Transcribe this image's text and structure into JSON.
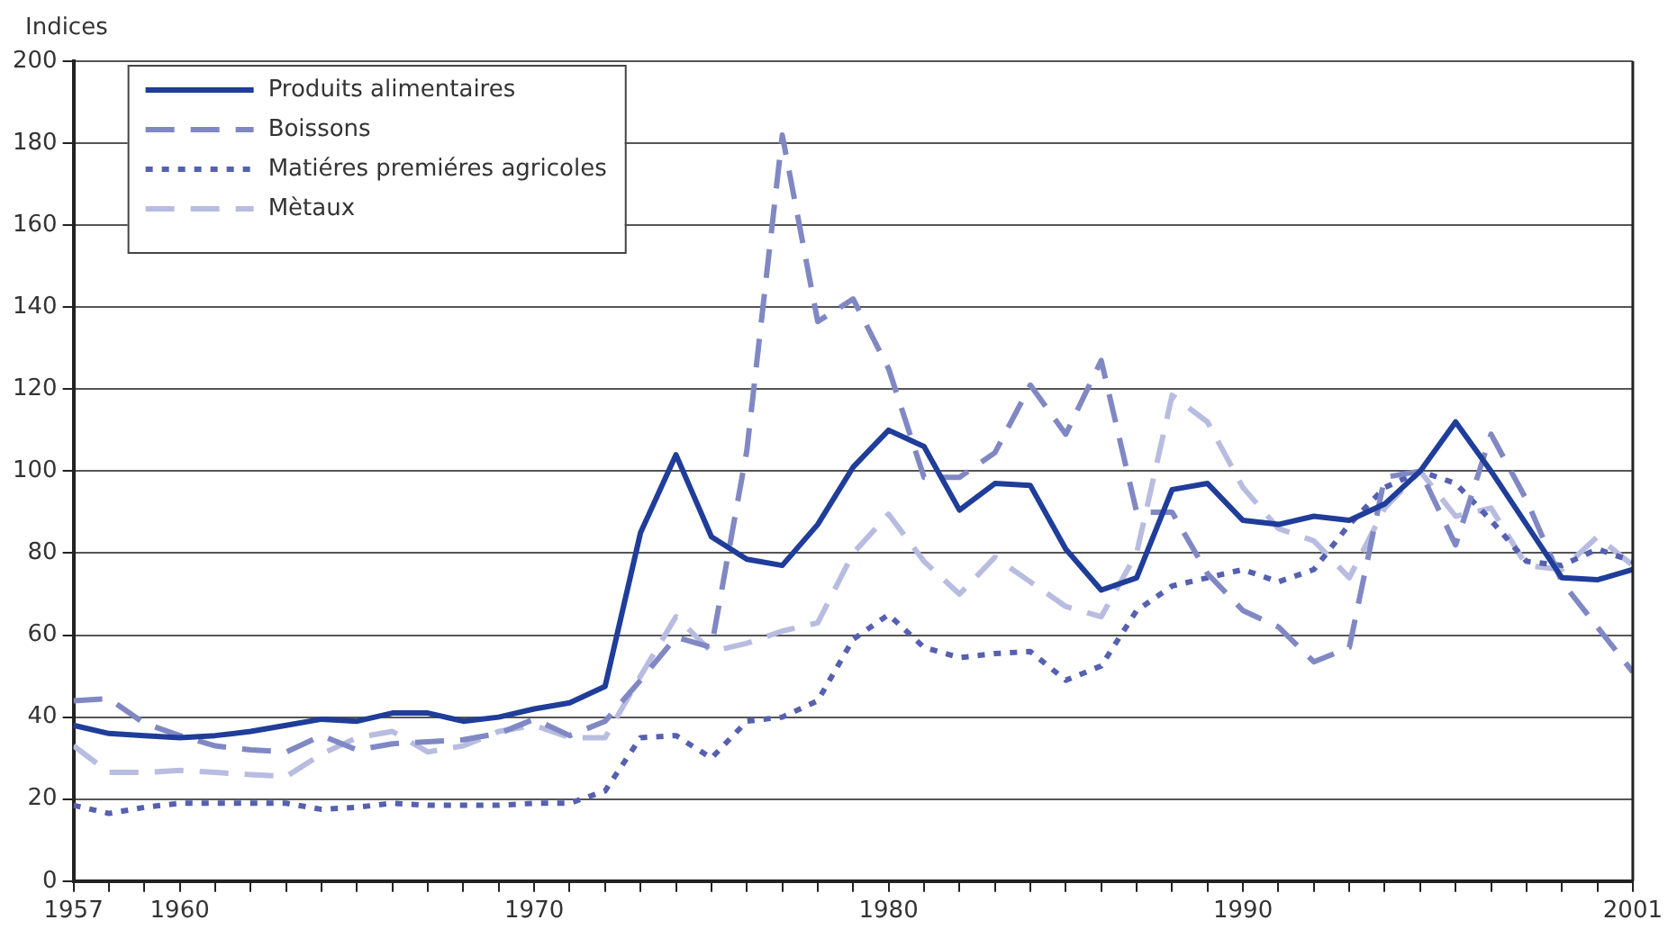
{
  "chart_data": {
    "type": "line",
    "ylabel": "Indices",
    "x": [
      1957,
      1958,
      1959,
      1960,
      1961,
      1962,
      1963,
      1964,
      1965,
      1966,
      1967,
      1968,
      1969,
      1970,
      1971,
      1972,
      1973,
      1974,
      1975,
      1976,
      1977,
      1978,
      1979,
      1980,
      1981,
      1982,
      1983,
      1984,
      1985,
      1986,
      1987,
      1988,
      1989,
      1990,
      1991,
      1992,
      1993,
      1994,
      1995,
      1996,
      1997,
      1998,
      1999,
      2000,
      2001
    ],
    "series": [
      {
        "name": "Produits alimentaires",
        "color": "#1f3d99",
        "line_style": "solid",
        "values": [
          38,
          36,
          35.5,
          35,
          35.5,
          36.5,
          38,
          39.5,
          39,
          41,
          41,
          39,
          40,
          42,
          43.5,
          47.5,
          85,
          104,
          84,
          78.5,
          77,
          87,
          101,
          110,
          106,
          90.5,
          97,
          96.5,
          81,
          71,
          74,
          95.5,
          97,
          88,
          87,
          89,
          88,
          92,
          100,
          112,
          100,
          87,
          74,
          73.5,
          76
        ]
      },
      {
        "name": "Boissons",
        "color": "#8088c4",
        "line_style": "dashed",
        "values": [
          44,
          44.5,
          38.5,
          35.5,
          33,
          32,
          31.5,
          35.5,
          32,
          33.5,
          34,
          34.5,
          36,
          39.5,
          35.5,
          39,
          49,
          59.5,
          57,
          105,
          182,
          136.5,
          142,
          125,
          98.5,
          98.5,
          104.5,
          121,
          109,
          127,
          90,
          90,
          75,
          66,
          62,
          53.5,
          57,
          98.5,
          100,
          82,
          109,
          93,
          73,
          62,
          51
        ]
      },
      {
        "name": "Matiéres premiéres agricoles",
        "color": "#5560b0",
        "line_style": "dotted",
        "values": [
          18.5,
          16.5,
          18,
          19,
          19,
          19,
          19,
          17.5,
          18,
          19,
          18.5,
          18.5,
          18.5,
          19,
          19,
          22,
          35,
          35.5,
          30,
          39,
          40,
          44,
          59,
          65,
          57,
          54.5,
          55.5,
          56,
          49,
          52.5,
          66,
          72,
          74,
          76,
          73,
          76,
          87,
          96,
          100,
          97,
          88,
          78,
          77,
          81,
          78
        ]
      },
      {
        "name": "Mètaux",
        "color": "#b8bce0",
        "line_style": "dashed",
        "values": [
          33,
          26.5,
          26.5,
          27,
          26.5,
          26,
          25.5,
          31,
          35,
          36.5,
          31.5,
          33,
          36.5,
          38,
          35,
          35,
          50,
          64.5,
          56,
          58,
          61,
          63,
          80,
          89.5,
          78,
          70,
          79,
          73,
          67,
          64.5,
          80,
          118.5,
          112,
          96,
          86,
          83,
          74,
          91,
          100,
          89,
          91,
          77,
          76,
          84,
          77
        ]
      }
    ],
    "xlim": [
      1957,
      2001
    ],
    "xticks": [
      1957,
      {
        "value": 1958,
        "label": null
      },
      {
        "value": 1959,
        "label": null
      },
      1960,
      {
        "value": 1961,
        "label": null
      },
      {
        "value": 1962,
        "label": null
      },
      {
        "value": 1963,
        "label": null
      },
      {
        "value": 1964,
        "label": null
      },
      {
        "value": 1965,
        "label": null
      },
      {
        "value": 1966,
        "label": null
      },
      {
        "value": 1967,
        "label": null
      },
      {
        "value": 1968,
        "label": null
      },
      {
        "value": 1969,
        "label": null
      },
      1970,
      {
        "value": 1971,
        "label": null
      },
      {
        "value": 1972,
        "label": null
      },
      {
        "value": 1973,
        "label": null
      },
      {
        "value": 1974,
        "label": null
      },
      {
        "value": 1975,
        "label": null
      },
      {
        "value": 1976,
        "label": null
      },
      {
        "value": 1977,
        "label": null
      },
      {
        "value": 1978,
        "label": null
      },
      {
        "value": 1979,
        "label": null
      },
      1980,
      {
        "value": 1981,
        "label": null
      },
      {
        "value": 1982,
        "label": null
      },
      {
        "value": 1983,
        "label": null
      },
      {
        "value": 1984,
        "label": null
      },
      {
        "value": 1985,
        "label": null
      },
      {
        "value": 1986,
        "label": null
      },
      {
        "value": 1987,
        "label": null
      },
      {
        "value": 1988,
        "label": null
      },
      {
        "value": 1989,
        "label": null
      },
      1990,
      {
        "value": 1991,
        "label": null
      },
      {
        "value": 1992,
        "label": null
      },
      {
        "value": 1993,
        "label": null
      },
      {
        "value": 1994,
        "label": null
      },
      {
        "value": 1995,
        "label": null
      },
      {
        "value": 1996,
        "label": null
      },
      {
        "value": 1997,
        "label": null
      },
      {
        "value": 1998,
        "label": null
      },
      {
        "value": 1999,
        "label": null
      },
      {
        "value": 2000,
        "label": null
      },
      2001
    ],
    "ylim": [
      0,
      200
    ],
    "yticks": [
      0,
      20,
      40,
      60,
      80,
      100,
      120,
      140,
      160,
      180,
      200
    ],
    "grid": "y",
    "legend": "top left",
    "marker": "none"
  }
}
